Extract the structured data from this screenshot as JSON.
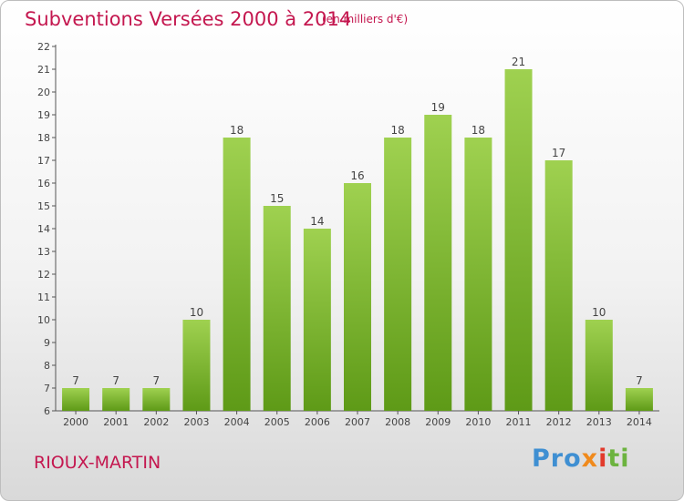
{
  "header": {
    "title": "Subventions Versées 2000 à 2014",
    "unit_note": "(en milliers d'€)"
  },
  "footer": {
    "commune": "RIOUX-MARTIN",
    "logo": [
      "Pro",
      "x",
      "i",
      "ti"
    ]
  },
  "colors": {
    "accent": "#c4174f",
    "bar_light": "#9fd150",
    "bar_dark": "#5e9a17"
  },
  "chart_data": {
    "type": "bar",
    "title": "Subventions Versées 2000 à 2014",
    "subtitle": "(en milliers d'€)",
    "xlabel": "",
    "ylabel": "",
    "categories": [
      "2000",
      "2001",
      "2002",
      "2003",
      "2004",
      "2005",
      "2006",
      "2007",
      "2008",
      "2009",
      "2010",
      "2011",
      "2012",
      "2013",
      "2014"
    ],
    "values": [
      7,
      7,
      7,
      10,
      18,
      15,
      14,
      16,
      18,
      19,
      18,
      21,
      17,
      10,
      7
    ],
    "data_labels": [
      "7",
      "7",
      "7",
      "10",
      "18",
      "15",
      "14",
      "16",
      "18",
      "19",
      "18",
      "21",
      "17",
      "10",
      "7"
    ],
    "ylim": [
      6,
      22
    ],
    "yticks": [
      6,
      7,
      8,
      9,
      10,
      11,
      12,
      13,
      14,
      15,
      16,
      17,
      18,
      19,
      20,
      21,
      22
    ],
    "grid": false,
    "legend": "none"
  }
}
